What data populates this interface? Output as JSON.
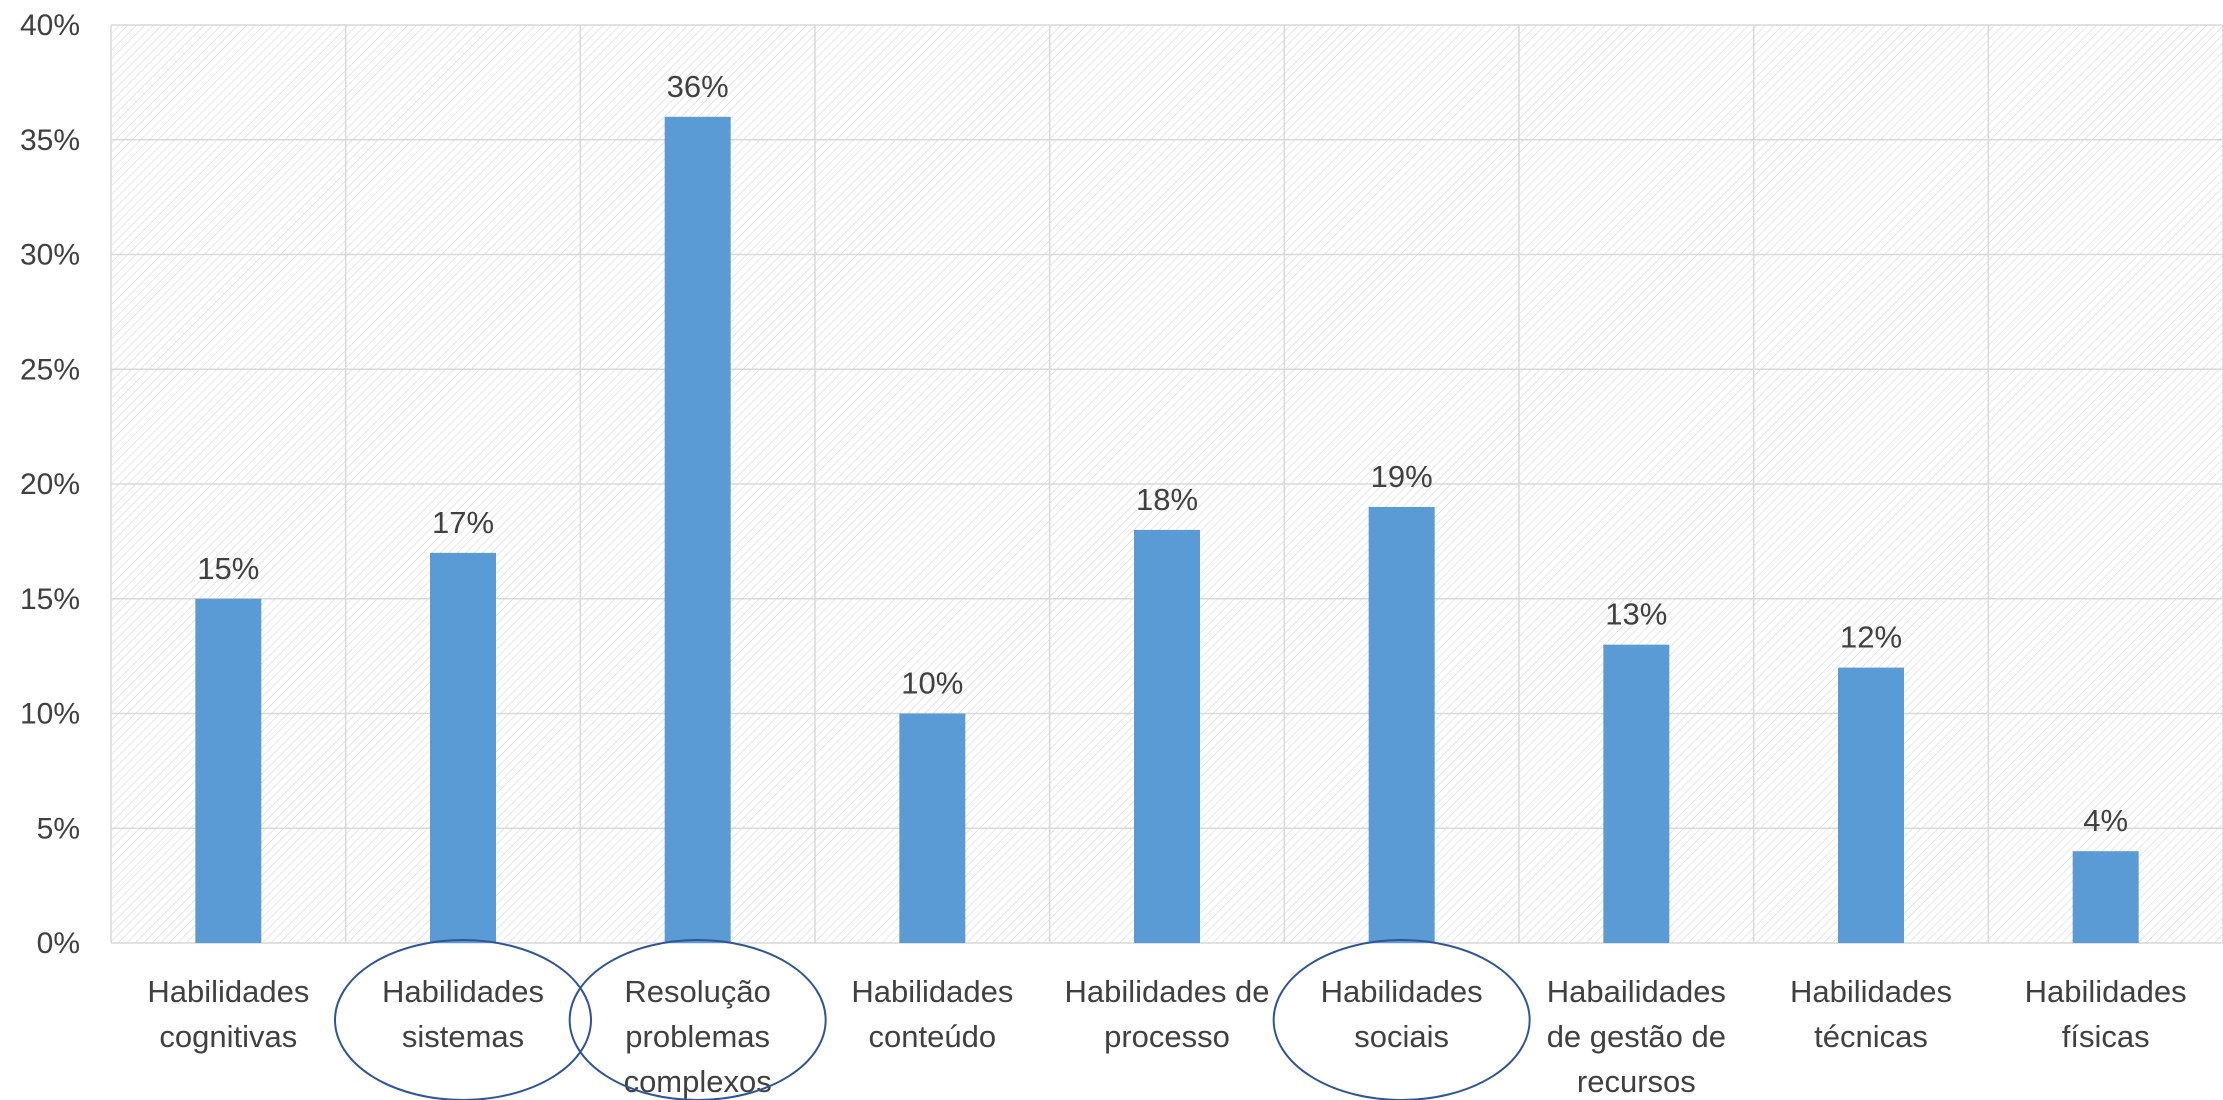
{
  "colors": {
    "bar": "#5B9BD5",
    "grid": "#d9d9d9",
    "hatch": "#d6d6d6",
    "ellipse": "#2f5597",
    "text": "#404040"
  },
  "chart_data": {
    "type": "bar",
    "title": "",
    "xlabel": "",
    "ylabel": "",
    "ylim": [
      0,
      40
    ],
    "y_ticks": [
      0,
      5,
      10,
      15,
      20,
      25,
      30,
      35,
      40
    ],
    "y_tick_labels": [
      "0%",
      "5%",
      "10%",
      "15%",
      "20%",
      "25%",
      "30%",
      "35%",
      "40%"
    ],
    "grid": true,
    "legend": "none",
    "categories": [
      [
        "Habilidades",
        "cognitivas"
      ],
      [
        "Habilidades",
        "sistemas"
      ],
      [
        "Resolução",
        "problemas",
        "complexos"
      ],
      [
        "Habilidades",
        "conteúdo"
      ],
      [
        "Habilidades de",
        "processo"
      ],
      [
        "Habilidades",
        "sociais"
      ],
      [
        "Habailidades",
        "de gestão de",
        "recursos"
      ],
      [
        "Habilidades",
        "técnicas"
      ],
      [
        "Habilidades",
        "físicas"
      ]
    ],
    "values": [
      15,
      17,
      36,
      10,
      18,
      19,
      13,
      12,
      4
    ],
    "data_labels": [
      "15%",
      "17%",
      "36%",
      "10%",
      "18%",
      "19%",
      "13%",
      "12%",
      "4%"
    ],
    "circled_categories": [
      1,
      2,
      5
    ]
  }
}
